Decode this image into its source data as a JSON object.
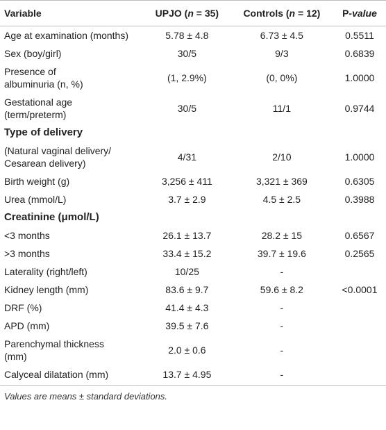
{
  "header": [
    [
      "Variable"
    ],
    [
      "UPJO (",
      "n",
      " = 35)"
    ],
    [
      "Controls (",
      "n",
      " = 12)"
    ],
    [
      "P",
      "-value"
    ]
  ],
  "rows": [
    [
      "Age at examination (months)",
      "5.78 ± 4.8",
      "6.73 ± 4.5",
      "0.5511"
    ],
    [
      "Sex (boy/girl)",
      "30/5",
      "9/3",
      "0.6839"
    ],
    [
      "Presence of\nalbuminuria (n, %)",
      "(1, 2.9%)",
      "(0, 0%)",
      "1.0000"
    ],
    [
      "Gestational age\n(term/preterm)",
      "30/5",
      "11/1",
      "0.9744"
    ],
    [
      "Type of delivery"
    ],
    [
      "(Natural vaginal delivery/\nCesarean delivery)",
      "4/31",
      "2/10",
      "1.0000"
    ],
    [
      "Birth weight (g)",
      "3,256 ± 411",
      "3,321 ± 369",
      "0.6305"
    ],
    [
      "Urea (mmol/L)",
      "3.7 ± 2.9",
      "4.5 ± 2.5",
      "0.3988"
    ],
    [
      "Creatinine (μmol/L)"
    ],
    [
      "<3 months",
      "26.1 ± 13.7",
      "28.2 ± 15",
      "0.6567"
    ],
    [
      ">3 months",
      "33.4 ± 15.2",
      "39.7 ± 19.6",
      "0.2565"
    ],
    [
      "Laterality (right/left)",
      "10/25",
      "-"
    ],
    [
      "Kidney length (mm)",
      "83.6 ± 9.7",
      "59.6 ± 8.2",
      "<0.0001"
    ],
    [
      "DRF (%)",
      "41.4 ± 4.3",
      "-"
    ],
    [
      "APD (mm)",
      "39.5 ± 7.6",
      "-"
    ],
    [
      "Parenchymal thickness\n(mm)",
      "2.0 ± 0.6",
      "-"
    ],
    [
      "Calyceal dilatation (mm)",
      "13.7 ± 4.95",
      "-"
    ]
  ],
  "footnote": "Values are means ± standard deviations."
}
